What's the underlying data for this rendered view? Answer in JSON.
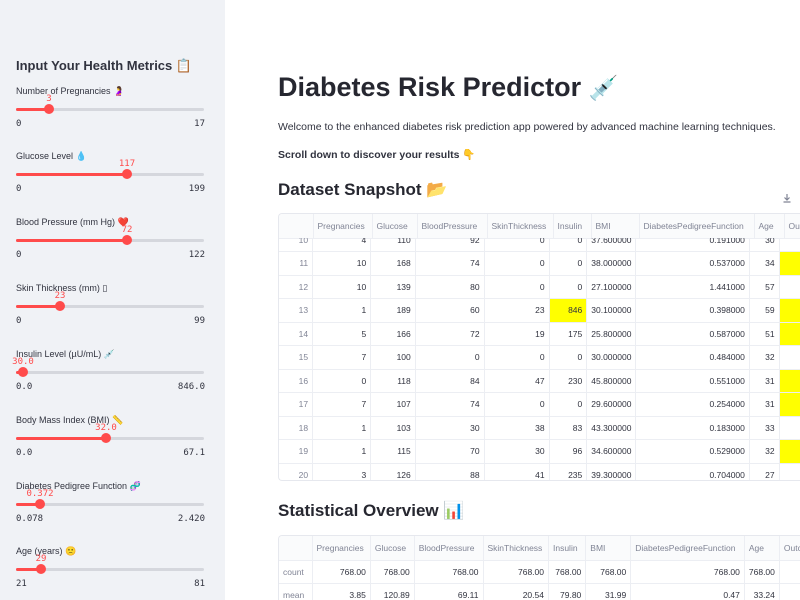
{
  "sidebar": {
    "title": "Input Your Health Metrics 📋",
    "sliders": [
      {
        "label": "Number of Pregnancies 🤰",
        "value": "3",
        "min": "0",
        "max": "17",
        "fraction": 0.176
      },
      {
        "label": "Glucose Level 💧",
        "value": "117",
        "min": "0",
        "max": "199",
        "fraction": 0.588
      },
      {
        "label": "Blood Pressure (mm Hg) ❤️",
        "value": "72",
        "min": "0",
        "max": "122",
        "fraction": 0.59
      },
      {
        "label": "Skin Thickness (mm) ▯",
        "value": "23",
        "min": "0",
        "max": "99",
        "fraction": 0.232
      },
      {
        "label": "Insulin Level (µU/mL) 💉",
        "value": "30.0",
        "min": "0.0",
        "max": "846.0",
        "fraction": 0.035
      },
      {
        "label": "Body Mass Index (BMI) 📏",
        "value": "32.0",
        "min": "0.0",
        "max": "67.1",
        "fraction": 0.477
      },
      {
        "label": "Diabetes Pedigree Function 🧬",
        "value": "0.372",
        "min": "0.078",
        "max": "2.420",
        "fraction": 0.126
      },
      {
        "label": "Age (years) 🙁",
        "value": "29",
        "min": "21",
        "max": "81",
        "fraction": 0.133
      }
    ]
  },
  "main": {
    "title": "Diabetes Risk Predictor",
    "title_emoji": "💉",
    "welcome": "Welcome to the enhanced diabetes risk prediction app powered by advanced machine learning techniques.",
    "scroll_note": "Scroll down to discover your results 👇",
    "dataset_heading": "Dataset Snapshot 📂",
    "stats_heading": "Statistical Overview 📊"
  },
  "dataset_table": {
    "columns": [
      "",
      "Pregnancies",
      "Glucose",
      "BloodPressure",
      "SkinThickness",
      "Insulin",
      "BMI",
      "DiabetesPedigreeFunction",
      "Age",
      "Ou"
    ],
    "rows": [
      [
        "10",
        "4",
        "110",
        "92",
        "0",
        "0",
        "37.600000",
        "0.191000",
        "30",
        ""
      ],
      [
        "11",
        "10",
        "168",
        "74",
        "0",
        "0",
        "38.000000",
        "0.537000",
        "34",
        ""
      ],
      [
        "12",
        "10",
        "139",
        "80",
        "0",
        "0",
        "27.100000",
        "1.441000",
        "57",
        ""
      ],
      [
        "13",
        "1",
        "189",
        "60",
        "23",
        "846",
        "30.100000",
        "0.398000",
        "59",
        ""
      ],
      [
        "14",
        "5",
        "166",
        "72",
        "19",
        "175",
        "25.800000",
        "0.587000",
        "51",
        ""
      ],
      [
        "15",
        "7",
        "100",
        "0",
        "0",
        "0",
        "30.000000",
        "0.484000",
        "32",
        ""
      ],
      [
        "16",
        "0",
        "118",
        "84",
        "47",
        "230",
        "45.800000",
        "0.551000",
        "31",
        ""
      ],
      [
        "17",
        "7",
        "107",
        "74",
        "0",
        "0",
        "29.600000",
        "0.254000",
        "31",
        ""
      ],
      [
        "18",
        "1",
        "103",
        "30",
        "38",
        "83",
        "43.300000",
        "0.183000",
        "33",
        ""
      ],
      [
        "19",
        "1",
        "115",
        "70",
        "30",
        "96",
        "34.600000",
        "0.529000",
        "32",
        ""
      ],
      [
        "20",
        "3",
        "126",
        "88",
        "41",
        "235",
        "39.300000",
        "0.704000",
        "27",
        ""
      ]
    ],
    "highlighted_cells": [
      [
        1,
        9
      ],
      [
        3,
        5
      ],
      [
        3,
        9
      ],
      [
        4,
        9
      ],
      [
        6,
        9
      ],
      [
        7,
        9
      ],
      [
        9,
        9
      ]
    ],
    "highlight_color": "#ffff00"
  },
  "stats_table": {
    "columns": [
      "",
      "Pregnancies",
      "Glucose",
      "BloodPressure",
      "SkinThickness",
      "Insulin",
      "BMI",
      "DiabetesPedigreeFunction",
      "Age",
      "Outco"
    ],
    "rows": [
      [
        "count",
        "768.00",
        "768.00",
        "768.00",
        "768.00",
        "768.00",
        "768.00",
        "768.00",
        "768.00",
        ""
      ],
      [
        "mean",
        "3.85",
        "120.89",
        "69.11",
        "20.54",
        "79.80",
        "31.99",
        "0.47",
        "33.24",
        ""
      ]
    ]
  },
  "colors": {
    "accent": "#ff4b4b",
    "sidebar_bg": "#f0f2f6",
    "highlight": "#ffff00"
  },
  "icons": {
    "download": "download-icon"
  }
}
